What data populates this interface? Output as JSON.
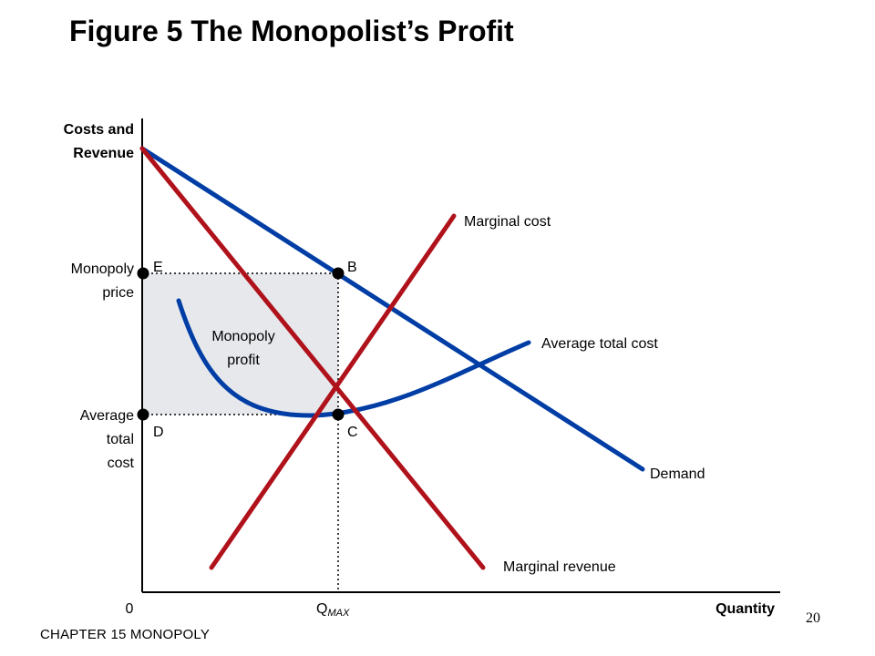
{
  "title": "Figure 5 The Monopolist’s Profit",
  "footer": "CHAPTER 15 MONOPOLY",
  "page_number": "20",
  "axes": {
    "y_label_line1": "Costs and",
    "y_label_line2": "Revenue",
    "x_label": "Quantity",
    "origin": "0",
    "q_max": "Q",
    "q_max_sub": "MAX"
  },
  "levels": {
    "monopoly_price_line1": "Monopoly",
    "monopoly_price_line2": "price",
    "average_total_cost_line1": "Average",
    "average_total_cost_line2": "total",
    "average_total_cost_line3": "cost"
  },
  "points": {
    "E": "E",
    "B": "B",
    "D": "D",
    "C": "C"
  },
  "region": {
    "line1": "Monopoly",
    "line2": "profit"
  },
  "curves": {
    "marginal_cost": "Marginal cost",
    "average_total_cost": "Average total cost",
    "demand": "Demand",
    "marginal_revenue": "Marginal revenue"
  },
  "colors": {
    "demand": "#003da5",
    "atc": "#003da5",
    "mc": "#b0121b",
    "mr": "#b0121b",
    "profit_fill": "#e6e8ec"
  }
}
